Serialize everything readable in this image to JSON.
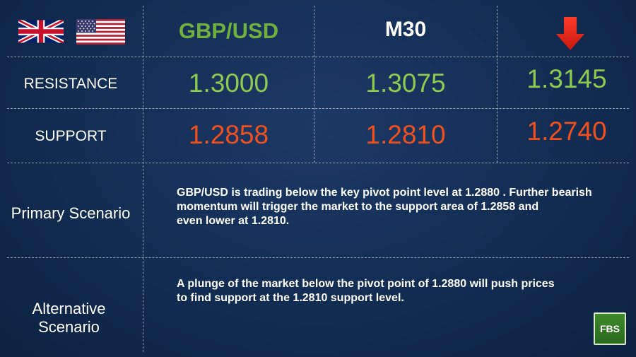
{
  "header": {
    "pair": "GBP/USD",
    "timeframe": "M30",
    "direction_icon": "down-arrow-icon",
    "flags": [
      "uk-flag-icon",
      "us-flag-icon"
    ]
  },
  "resistance": {
    "label": "RESISTANCE",
    "values": [
      "1.3000",
      "1.3075",
      "1.3145"
    ]
  },
  "support": {
    "label": "SUPPORT",
    "values": [
      "1.2858",
      "1.2810",
      "1.2740"
    ]
  },
  "primary": {
    "label": "Primary Scenario",
    "lines": [
      "GBP/USD is trading below the key pivot point level at 1.2880 . Further bearish",
      "momentum will trigger the market to the support area of 1.2858 and",
      "even lower at 1.2810."
    ]
  },
  "alternative": {
    "label_lines": [
      "Alternative",
      "Scenario"
    ],
    "lines": [
      "A plunge of the market below the pivot point of 1.2880 will push prices",
      "to find support at the 1.2810 support level."
    ]
  },
  "logo": {
    "text": "FBS"
  },
  "colors": {
    "green": "#8ccb4f",
    "orange": "#f0501e",
    "arrow": "#e8261c",
    "background": "#132c52"
  }
}
